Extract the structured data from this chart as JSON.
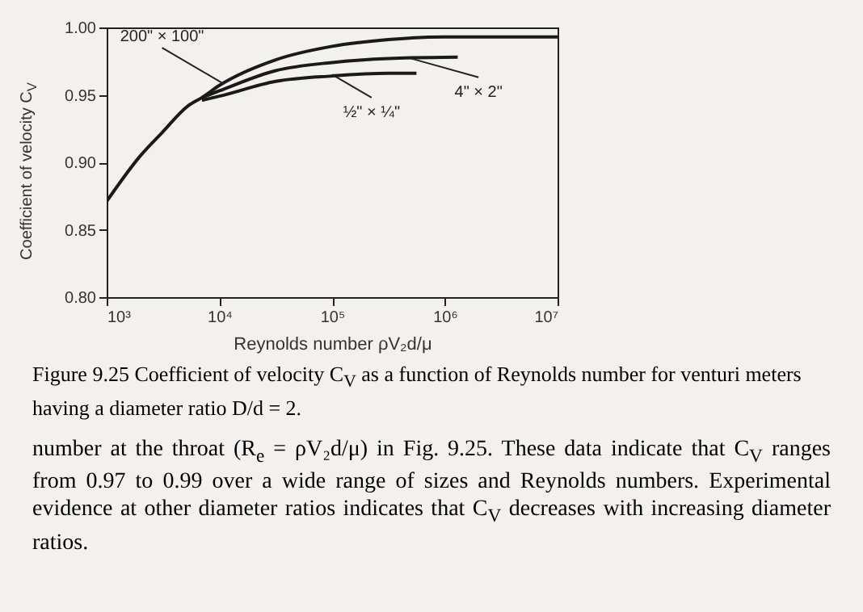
{
  "chart_data": {
    "type": "line",
    "xlabel": "Reynolds number ρV₂d/μ",
    "ylabel": "Coefficient of velocity C$_{V}$",
    "log": "x",
    "grid": false,
    "line_style": "solid",
    "xlim": [
      1000,
      10000000
    ],
    "ylim": [
      0.8,
      1.0
    ],
    "xticks": [
      {
        "value": 1000,
        "label": "10³"
      },
      {
        "value": 10000,
        "label": "10⁴"
      },
      {
        "value": 100000,
        "label": "10⁵"
      },
      {
        "value": 1000000,
        "label": "10⁶"
      },
      {
        "value": 10000000,
        "label": "10⁷"
      }
    ],
    "yticks": [
      {
        "value": 0.8,
        "label": "0.80"
      },
      {
        "value": 0.85,
        "label": "0.85"
      },
      {
        "value": 0.9,
        "label": "0.90"
      },
      {
        "value": 0.95,
        "label": "0.95"
      },
      {
        "value": 1.0,
        "label": "1.00"
      }
    ],
    "series": [
      {
        "color": "#1a1a1a",
        "x": [
          1000,
          2000,
          3100,
          5300,
          7000,
          10000,
          31600,
          100000,
          316000,
          1000000,
          10000000
        ],
        "values": [
          0.871,
          0.905,
          0.922,
          0.942,
          0.948,
          0.957,
          0.976,
          0.986,
          0.991,
          0.993,
          0.993
        ]
      },
      {
        "color": "#1a1a1a",
        "x": [
          7000,
          10000,
          31600,
          100000,
          316000,
          1300000
        ],
        "values": [
          0.948,
          0.953,
          0.968,
          0.974,
          0.977,
          0.978
        ]
      },
      {
        "color": "#1a1a1a",
        "x": [
          7000,
          10000,
          31600,
          100000,
          316000,
          560000
        ],
        "values": [
          0.946,
          0.949,
          0.96,
          0.964,
          0.966,
          0.966
        ]
      }
    ],
    "annotations": [
      {
        "text": "200\" × 100\"",
        "x": 11000,
        "y": 0.958
      },
      {
        "text": "4\" × 2\"",
        "x": 500000,
        "y": 0.977
      },
      {
        "text": "½\" × ¼\"",
        "x": 100000,
        "y": 0.965
      },
      "Figure 9.25 Coefficient of velocity C$_{V}$ as a function of Reynolds number for venturi meters having a diameter ratio D/d = 2.",
      "number at the throat (R$_{e}$ = ρV₂d/μ) in Fig. 9.25. These data indicate that C$_{V}$ ranges from 0.97 to 0.99 over a wide range of sizes and Reynolds numbers. Experimental evidence at other diameter ratios indicates that C$_{V}$ decreases with increasing diameter ratios."
    ]
  }
}
